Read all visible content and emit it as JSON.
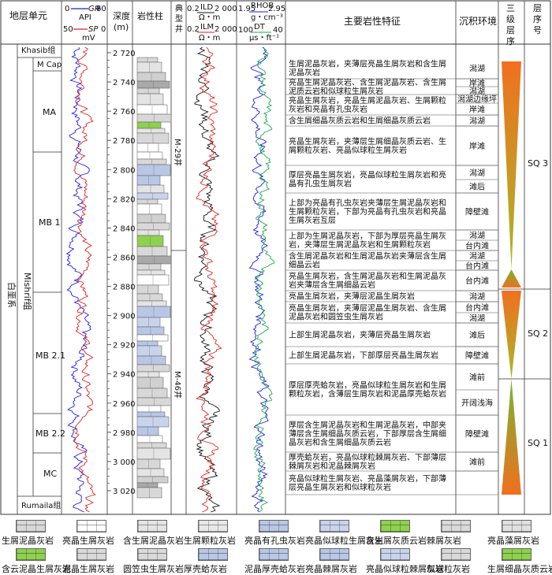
{
  "header": {
    "unit_col": "地层单元",
    "gr_name": "GR",
    "gr_unit": "API",
    "gr_min": "0",
    "gr_max": "80",
    "sp_name": "SP",
    "sp_unit": "mV",
    "sp_min": "50",
    "sp_max": "0",
    "depth_col": "深度\n(m)",
    "depth_label": "深度",
    "depth_unit": "(m)",
    "lith_col": "岩性柱",
    "well_col_1": "典",
    "well_col_2": "型",
    "well_col_3": "井",
    "ild_name": "ILD",
    "ild_unit": "Ω・m",
    "ild_min": "0.2",
    "ild_max": "2 000",
    "ilm_name": "ILM",
    "ilm_unit": "Ω・m",
    "ilm_min": "0.2",
    "ilm_max": "2 000",
    "rhob_name": "RHOB",
    "rhob_unit": "g・cm⁻³",
    "rhob_min": "1.95",
    "rhob_max": "2.95",
    "dt_name": "DT",
    "dt_unit": "μs・ft⁻¹",
    "dt_min": "100",
    "dt_max": "40",
    "features_col": "主要岩性特征",
    "env_col": "沉积环境",
    "tertiary_col": "三级层序",
    "seq_no_col": "层序号"
  },
  "strata": {
    "system": "白垩系",
    "formation": "Mishrif组",
    "khasib": "Khasib组",
    "rumaila": "Rumaila组",
    "members": [
      "M Cap",
      "MA",
      "MB 1",
      "MB 2.1",
      "MB 2.2",
      "MC"
    ]
  },
  "depth_ticks": [
    "2 720",
    "2 740",
    "2 760",
    "2 780",
    "2 800",
    "2 820",
    "2 840",
    "2 860",
    "2 880",
    "2 900",
    "2 920",
    "2 940",
    "2 960",
    "2 980",
    "3 000",
    "3 020"
  ],
  "wells": [
    "M-29井",
    "M-46井"
  ],
  "features": [
    "生屑泥晶灰岩，夹薄层亮晶生屑灰岩和含生屑泥晶灰岩",
    "亮晶生屑泥晶灰岩、含生屑泥晶灰岩、含生屑泥质云岩和似球粒生屑灰岩",
    "亮晶生屑灰岩，亮晶生屑泥晶灰岩、生屑颗粒灰岩和亮晶有孔虫灰岩",
    "含生屑细晶灰质云岩和生屑细晶灰质云岩",
    "亮晶生屑灰岩，夹薄层生屑细晶灰质云岩、生屑颗粒灰岩、亮晶似球粒生屑灰岩",
    "厚层亮晶生屑灰岩，亮晶似球粒生屑灰岩和亮晶有孔虫生屑灰岩",
    "上部为亮晶有孔虫灰岩夹薄层生屑泥晶灰岩和生屑颗粒灰岩，下部为亮晶有孔虫灰岩和亮晶生屑灰岩互层",
    "上部为生屑泥晶灰岩，下部为厚层亮晶生屑灰岩，夹薄层生屑泥晶灰岩和生屑颗粒灰岩",
    "含生屑泥晶灰岩和生屑泥晶灰岩夹薄层含生屑细晶云岩",
    "亮晶生屑灰岩，含生屑泥晶灰岩和生屑泥晶灰岩夹薄层含生屑细晶云岩",
    "亮晶生屑灰岩，夹薄层泥晶生屑灰岩",
    "亮晶生屑灰岩，夹薄层泥晶生屑灰岩、含生屑泥晶灰岩和圆笠虫生屑灰岩",
    "上部生屑泥晶灰岩，夹薄层亮晶生屑灰岩",
    "上部生屑泥晶灰岩，下部厚层亮晶生屑灰岩",
    "厚层厚壳蛤灰岩，亮晶似球粒生屑灰岩和生屑颗粒灰岩，含薄层生屑灰岩和泥晶厚壳蛤灰岩",
    "厚层含生屑泥晶灰岩和生屑泥晶灰岩，中部夹薄层含生屑细晶灰质云岩，下部厚层含生屑细晶灰岩和含生屑细晶灰质云岩",
    "厚壳蛤灰岩，亮晶似球粒棘屑灰岩、下部薄层棘屑灰岩和泥晶棘屑灰岩",
    "亮晶似球粒生屑灰岩、亮晶藻屑灰岩，下部薄层亮晶生屑灰岩和似球粒灰岩"
  ],
  "environments": [
    "潟湖",
    "岸滩",
    "潟湖",
    "潟湖边缘坪",
    "岸滩",
    "潟湖",
    "岸滩",
    "潟湖",
    "滩后",
    "障壁滩",
    "潟湖",
    "台内滩",
    "潟湖",
    "台内滩",
    "台内滩",
    "潟湖",
    "台内滩",
    "潟湖",
    "滩后",
    "障壁滩",
    "滩前",
    "开阔浅海",
    "障壁滩",
    "滩前"
  ],
  "sequences": [
    "SQ 3",
    "SQ 2",
    "SQ 1"
  ],
  "legend": [
    {
      "label": "生屑泥晶灰岩",
      "pattern": "brick-dots",
      "color": "#d8d8d8"
    },
    {
      "label": "亮晶生屑灰岩",
      "pattern": "brick-tri",
      "color": "#ffffff"
    },
    {
      "label": "含生屑泥晶灰岩",
      "pattern": "brick-dots",
      "color": "#e4e4e4"
    },
    {
      "label": "生屑颗粒灰岩",
      "pattern": "brick-tri",
      "color": "#e8e8e8"
    },
    {
      "label": "亮晶有孔虫灰岩",
      "pattern": "forams",
      "color": "#b9c7e6"
    },
    {
      "label": "亮晶似球粒生屑灰岩",
      "pattern": "brick-dots",
      "color": "#c9d4ec"
    },
    {
      "label": "含生屑灰质云岩",
      "pattern": "dolomite",
      "color": "#8fd14f"
    },
    {
      "label": "棘屑灰岩",
      "pattern": "brick-o",
      "color": "#d9d9d9"
    },
    {
      "label": "亮晶藻屑灰岩",
      "pattern": "brick-plus",
      "color": "#e0e0e0"
    },
    {
      "label": "含云泥晶生屑灰岩",
      "pattern": "dolomite",
      "color": "#8fd14f"
    },
    {
      "label": "泥晶生屑灰岩",
      "pattern": "brick-tri",
      "color": "#d9d9d9"
    },
    {
      "label": "圆笠虫生屑灰岩",
      "pattern": "brick-v",
      "color": "#d9d9d9"
    },
    {
      "label": "厚壳蛤灰岩",
      "pattern": "brick-tri",
      "color": "#b9c7e6"
    },
    {
      "label": "泥晶厚壳蛤灰岩",
      "pattern": "brick-dots",
      "color": "#b9c7e6"
    },
    {
      "label": "亮晶棘屑灰岩",
      "pattern": "brick-o",
      "color": "#b9c7e6"
    },
    {
      "label": "亮晶似球粒棘屑灰岩",
      "pattern": "brick-o",
      "color": "#c9d4ec"
    },
    {
      "label": "似球粒灰岩",
      "pattern": "brick-dots",
      "color": "#d9d9d9"
    },
    {
      "label": "生屑细晶灰质云岩",
      "pattern": "dolomite",
      "color": "#8fd14f"
    }
  ],
  "colors": {
    "gr": "#1a1ae6",
    "sp": "#e02020",
    "rhob": "#1a1ae6",
    "dt": "#17a84a",
    "tri_top": "#f07020",
    "tri_bottom": "#78b430"
  }
}
